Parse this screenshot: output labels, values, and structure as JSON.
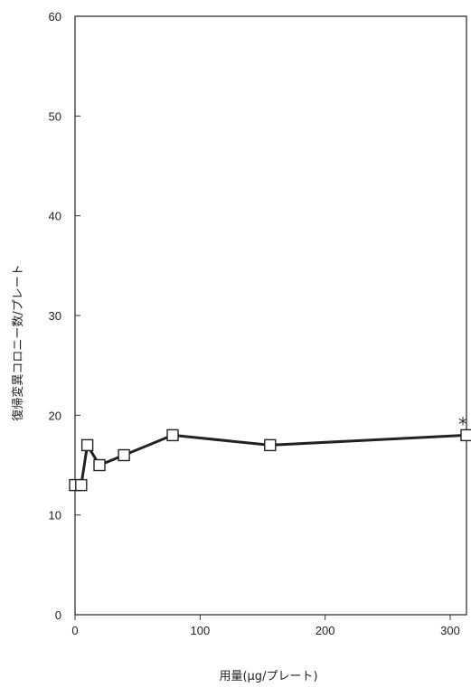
{
  "chart_data": {
    "type": "line",
    "title": "",
    "xlabel": "用量(μg/プレート)",
    "ylabel": "復帰変異コロニー数/プレート",
    "xlim": [
      0,
      313
    ],
    "ylim": [
      0,
      60
    ],
    "x_ticks": [
      0,
      100,
      200,
      300
    ],
    "y_ticks": [
      0,
      10,
      20,
      30,
      40,
      50,
      60
    ],
    "grid": false,
    "legend": "none",
    "series": [
      {
        "x": [
          0,
          4.9,
          9.8,
          19.5,
          39.1,
          78.1,
          156,
          313
        ],
        "y": [
          13,
          13,
          17,
          15,
          16,
          18,
          17,
          18
        ],
        "line_color": "#222222",
        "marker": "square",
        "marker_fill": "#ffffff"
      }
    ],
    "annotations": [
      {
        "text": "*",
        "x": 313,
        "y": 18
      }
    ]
  }
}
